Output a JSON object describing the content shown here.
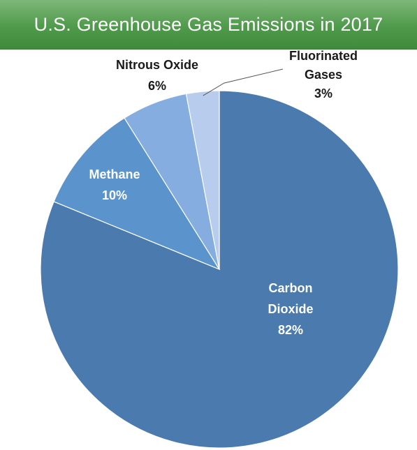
{
  "title": "U.S. Greenhouse Gas Emissions in 2017",
  "colors": {
    "banner": "#4f9a4b",
    "title_text": "#ffffff",
    "label_dark": "#1a1a1a",
    "label_light": "#ffffff"
  },
  "chart_data": {
    "type": "pie",
    "title": "U.S. Greenhouse Gas Emissions in 2017",
    "start_angle_deg": 0,
    "direction": "clockwise",
    "slices": [
      {
        "name": "Carbon Dioxide",
        "label_lines": [
          "Carbon",
          "Dioxide"
        ],
        "value": 82,
        "value_label": "82%",
        "color": "#4a7aae",
        "label_color": "#ffffff",
        "label_inside": true
      },
      {
        "name": "Methane",
        "label_lines": [
          "Methane"
        ],
        "value": 10,
        "value_label": "10%",
        "color": "#5b94cc",
        "label_color": "#ffffff",
        "label_inside": true
      },
      {
        "name": "Nitrous Oxide",
        "label_lines": [
          "Nitrous Oxide"
        ],
        "value": 6,
        "value_label": "6%",
        "color": "#85ade0",
        "label_color": "#1a1a1a",
        "label_inside": false
      },
      {
        "name": "Fluorinated Gases",
        "label_lines": [
          "Fluorinated",
          "Gases"
        ],
        "value": 3,
        "value_label": "3%",
        "color": "#b8cdee",
        "label_color": "#1a1a1a",
        "label_inside": false
      }
    ]
  }
}
